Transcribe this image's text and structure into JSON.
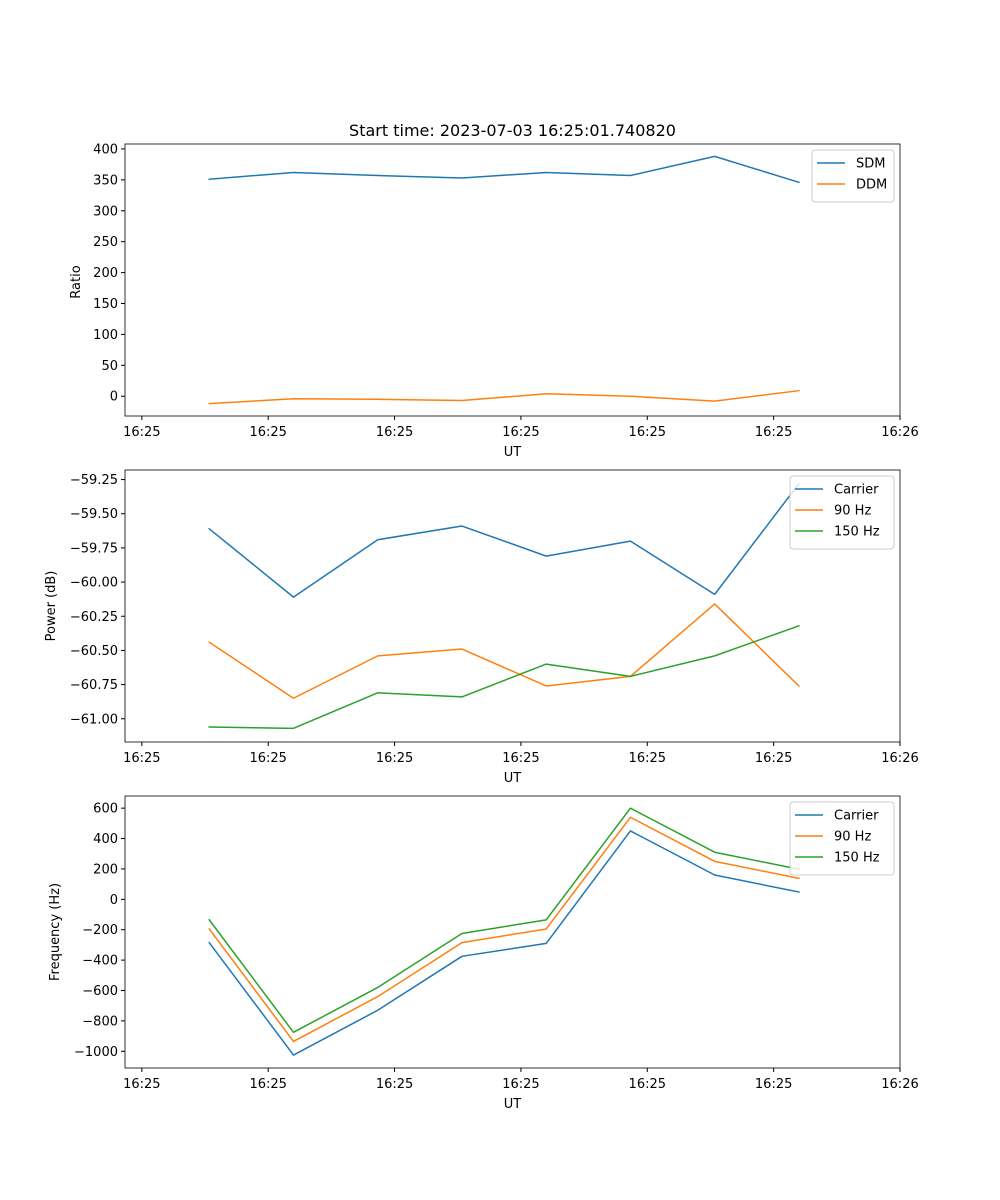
{
  "chart_data": [
    {
      "type": "line",
      "title": "Start time: 2023-07-03 16:25:01.740820",
      "xlabel": "UT",
      "ylabel": "Ratio",
      "x": [
        0.5,
        1,
        1.5,
        2,
        2.5,
        3,
        3.5,
        4
      ],
      "xlim": [
        0,
        4.6
      ],
      "xticks": [
        0.1,
        0.85,
        1.6,
        2.35,
        3.1,
        3.85,
        4.6
      ],
      "xtick_labels": [
        "16:25",
        "16:25",
        "16:25",
        "16:25",
        "16:25",
        "16:25",
        "16:26"
      ],
      "ylim": [
        -32,
        408
      ],
      "yticks": [
        0,
        50,
        100,
        150,
        200,
        250,
        300,
        350,
        400
      ],
      "ytick_labels": [
        "0",
        "50",
        "100",
        "150",
        "200",
        "250",
        "300",
        "350",
        "400"
      ],
      "legend_position": "top-right",
      "series": [
        {
          "name": "SDM",
          "color": "#1f77b4",
          "values": [
            351,
            362,
            357,
            353,
            362,
            357,
            388,
            346
          ]
        },
        {
          "name": "DDM",
          "color": "#ff7f0e",
          "values": [
            -12,
            -4,
            -5,
            -7,
            4,
            0,
            -8,
            9
          ]
        }
      ]
    },
    {
      "type": "line",
      "title": "",
      "xlabel": "UT",
      "ylabel": "Power (dB)",
      "x": [
        0.5,
        1,
        1.5,
        2,
        2.5,
        3,
        3.5,
        4
      ],
      "xlim": [
        0,
        4.6
      ],
      "xticks": [
        0.1,
        0.85,
        1.6,
        2.35,
        3.1,
        3.85,
        4.6
      ],
      "xtick_labels": [
        "16:25",
        "16:25",
        "16:25",
        "16:25",
        "16:25",
        "16:25",
        "16:26"
      ],
      "ylim": [
        -61.17,
        -59.18
      ],
      "yticks": [
        -61.0,
        -60.75,
        -60.5,
        -60.25,
        -60.0,
        -59.75,
        -59.5,
        -59.25
      ],
      "ytick_labels": [
        "−61.00",
        "−60.75",
        "−60.50",
        "−60.25",
        "−60.00",
        "−59.75",
        "−59.50",
        "−59.25"
      ],
      "legend_position": "top-right",
      "series": [
        {
          "name": "Carrier",
          "color": "#1f77b4",
          "values": [
            -59.61,
            -60.11,
            -59.69,
            -59.59,
            -59.81,
            -59.7,
            -60.09,
            -59.28
          ]
        },
        {
          "name": "90 Hz",
          "color": "#ff7f0e",
          "values": [
            -60.44,
            -60.85,
            -60.54,
            -60.49,
            -60.76,
            -60.69,
            -60.16,
            -60.76
          ]
        },
        {
          "name": "150 Hz",
          "color": "#2ca02c",
          "values": [
            -61.06,
            -61.07,
            -60.81,
            -60.84,
            -60.6,
            -60.69,
            -60.54,
            -60.32
          ]
        }
      ]
    },
    {
      "type": "line",
      "title": "",
      "xlabel": "UT",
      "ylabel": "Frequency (Hz)",
      "x": [
        0.5,
        1,
        1.5,
        2,
        2.5,
        3,
        3.5,
        4
      ],
      "xlim": [
        0,
        4.6
      ],
      "xticks": [
        0.1,
        0.85,
        1.6,
        2.35,
        3.1,
        3.85,
        4.6
      ],
      "xtick_labels": [
        "16:25",
        "16:25",
        "16:25",
        "16:25",
        "16:25",
        "16:25",
        "16:26"
      ],
      "ylim": [
        -1110,
        680
      ],
      "yticks": [
        -1000,
        -800,
        -600,
        -400,
        -200,
        0,
        200,
        400,
        600
      ],
      "ytick_labels": [
        "−1000",
        "−800",
        "−600",
        "−400",
        "−200",
        "0",
        "200",
        "400",
        "600"
      ],
      "legend_position": "top-right",
      "series": [
        {
          "name": "Carrier",
          "color": "#1f77b4",
          "values": [
            -285,
            -1025,
            -730,
            -375,
            -290,
            450,
            160,
            48
          ]
        },
        {
          "name": "90 Hz",
          "color": "#ff7f0e",
          "values": [
            -195,
            -935,
            -640,
            -285,
            -195,
            540,
            250,
            138
          ]
        },
        {
          "name": "150 Hz",
          "color": "#2ca02c",
          "values": [
            -135,
            -875,
            -580,
            -225,
            -135,
            600,
            310,
            198
          ]
        }
      ]
    }
  ]
}
